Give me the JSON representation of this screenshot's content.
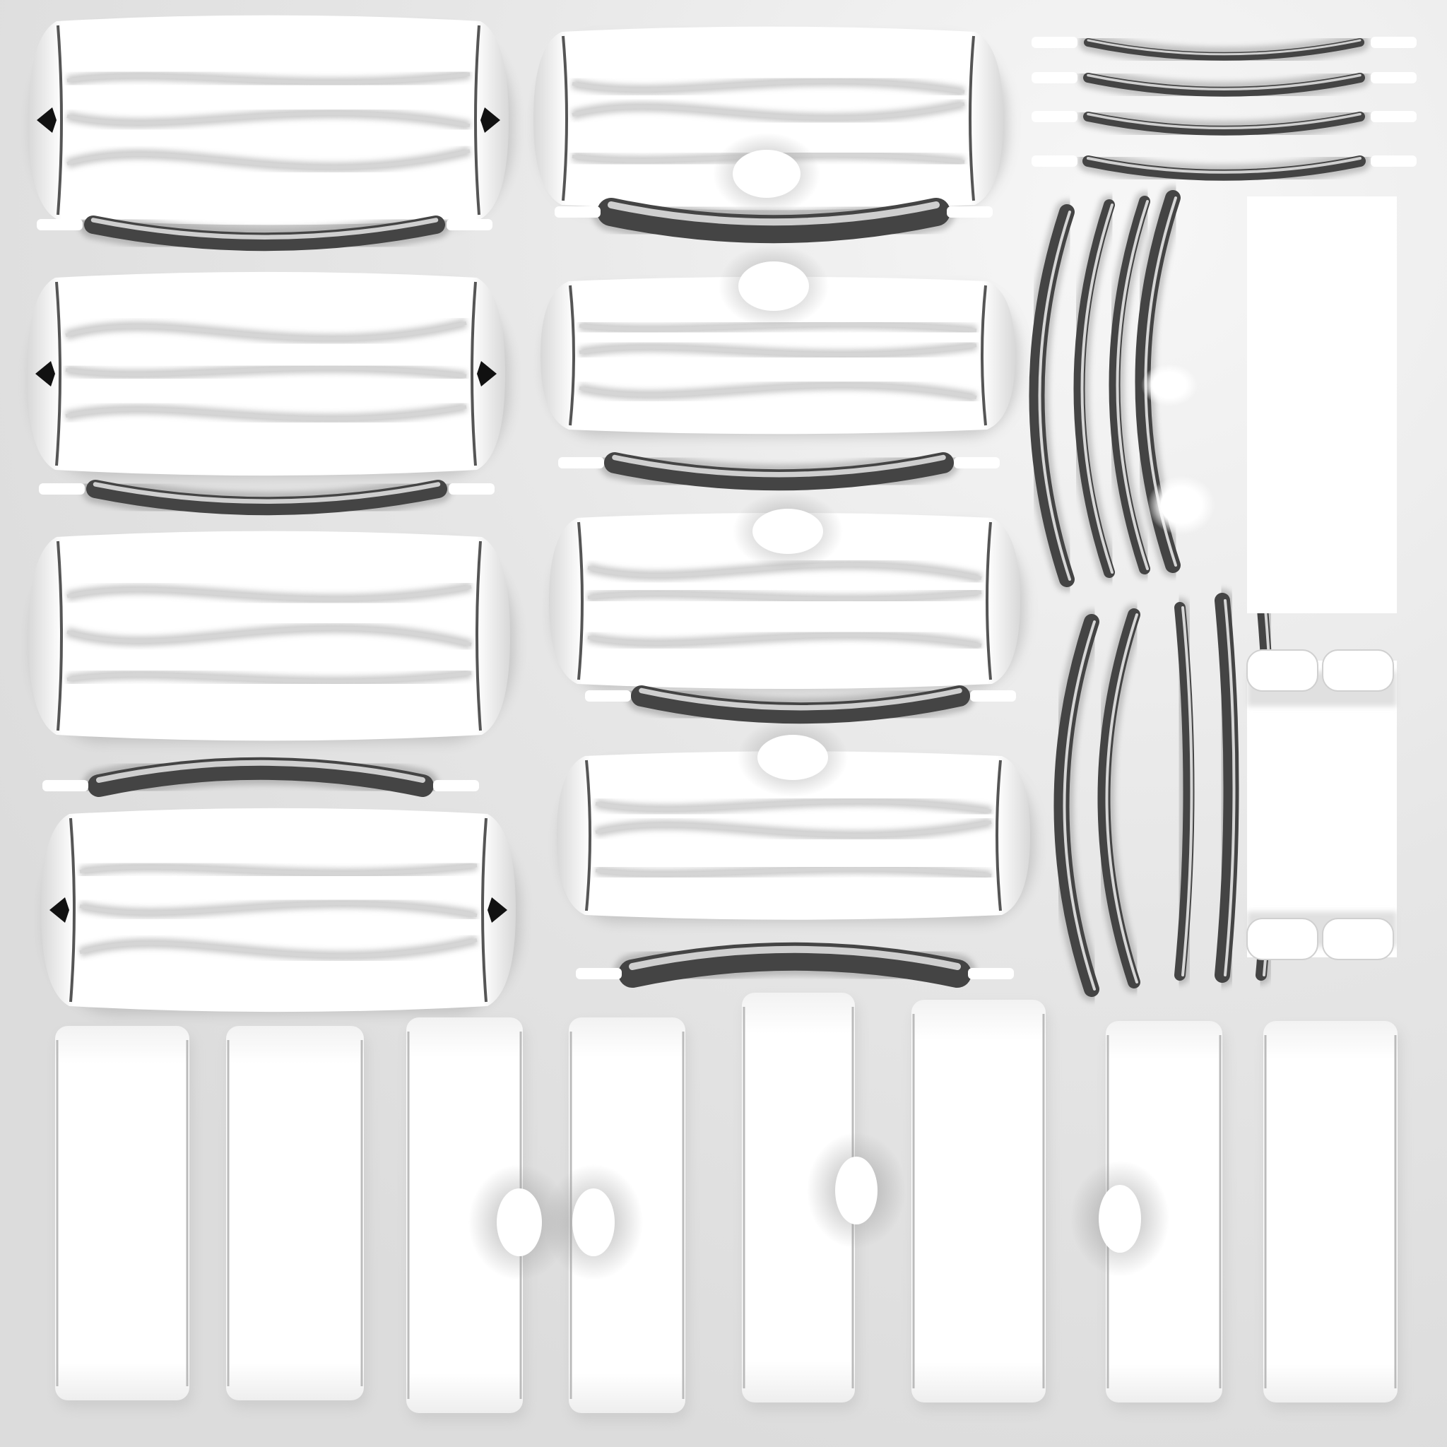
{
  "texture": {
    "kind": "ambient-occlusion-bake",
    "background_color": "#e4e4e4",
    "island_fill_color": "#ffffff",
    "occlusion_color": "#444444",
    "dark_spot_color": "#111111"
  }
}
